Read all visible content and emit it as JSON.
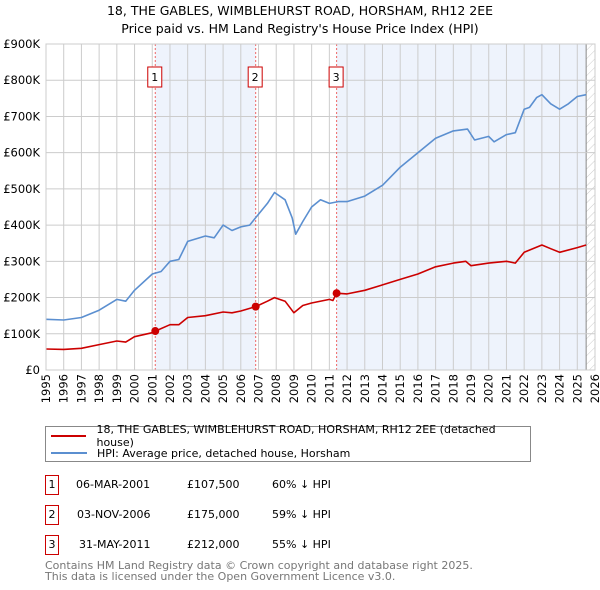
{
  "title": "18, THE GABLES, WIMBLEHURST ROAD, HORSHAM, RH12 2EE",
  "subtitle": "Price paid vs. HM Land Registry's House Price Index (HPI)",
  "colors": {
    "property": "#cc0000",
    "hpi": "#5b8fd0",
    "shade": "#eef3fc",
    "grid": "#cccccc"
  },
  "chart_data": {
    "type": "line",
    "title": "18, THE GABLES, WIMBLEHURST ROAD, HORSHAM, RH12 2EE",
    "xlim": [
      1995,
      2026
    ],
    "ylim": [
      0,
      900000
    ],
    "grid": true,
    "x_ticks": [
      "1995",
      "1996",
      "1997",
      "1998",
      "1999",
      "2000",
      "2001",
      "2002",
      "2003",
      "2004",
      "2005",
      "2006",
      "2007",
      "2008",
      "2009",
      "2010",
      "2011",
      "2012",
      "2013",
      "2014",
      "2015",
      "2016",
      "2017",
      "2018",
      "2019",
      "2020",
      "2021",
      "2022",
      "2023",
      "2024",
      "2025",
      "2026"
    ],
    "y_ticks": [
      {
        "v": 0,
        "label": "£0"
      },
      {
        "v": 100000,
        "label": "£100K"
      },
      {
        "v": 200000,
        "label": "£200K"
      },
      {
        "v": 300000,
        "label": "£300K"
      },
      {
        "v": 400000,
        "label": "£400K"
      },
      {
        "v": 500000,
        "label": "£500K"
      },
      {
        "v": 600000,
        "label": "£600K"
      },
      {
        "v": 700000,
        "label": "£700K"
      },
      {
        "v": 800000,
        "label": "£800K"
      },
      {
        "v": 900000,
        "label": "£900K"
      }
    ],
    "series": [
      {
        "name": "18, THE GABLES, WIMBLEHURST ROAD, HORSHAM, RH12 2EE (detached house)",
        "x": [
          1995,
          1996,
          1997,
          1998,
          1999,
          1999.5,
          2000,
          2001,
          2001.17,
          2002,
          2002.5,
          2003,
          2004,
          2005,
          2005.5,
          2006,
          2006.84,
          2007.5,
          2007.9,
          2008.5,
          2009,
          2009.5,
          2010,
          2011,
          2011.2,
          2011.41,
          2012,
          2013,
          2014,
          2015,
          2016,
          2017,
          2018,
          2018.7,
          2019,
          2020,
          2021,
          2021.5,
          2022,
          2023,
          2023.5,
          2024,
          2025,
          2025.5
        ],
        "y": [
          58000,
          57000,
          60000,
          70000,
          80000,
          77000,
          92000,
          103000,
          107500,
          125000,
          125000,
          145000,
          150000,
          160000,
          158000,
          163000,
          175000,
          190000,
          200000,
          190000,
          158000,
          178000,
          185000,
          195000,
          192000,
          212000,
          210000,
          220000,
          235000,
          250000,
          265000,
          285000,
          295000,
          300000,
          288000,
          295000,
          300000,
          295000,
          325000,
          345000,
          335000,
          325000,
          338000,
          345000
        ]
      },
      {
        "name": "HPI: Average price, detached house, Horsham",
        "x": [
          1995,
          1996,
          1997,
          1998,
          1999,
          1999.5,
          2000,
          2001,
          2001.5,
          2002,
          2002.5,
          2003,
          2004,
          2004.5,
          2005,
          2005.5,
          2006,
          2006.5,
          2007,
          2007.5,
          2007.9,
          2008.5,
          2008.9,
          2009.1,
          2009.5,
          2010,
          2010.5,
          2011,
          2011.5,
          2012,
          2013,
          2014,
          2015,
          2016,
          2017,
          2018,
          2018.8,
          2019.2,
          2020,
          2020.3,
          2021,
          2021.5,
          2022,
          2022.3,
          2022.7,
          2023,
          2023.5,
          2024,
          2024.5,
          2025,
          2025.5
        ],
        "y": [
          140000,
          138000,
          145000,
          165000,
          195000,
          190000,
          220000,
          265000,
          272000,
          300000,
          305000,
          355000,
          370000,
          365000,
          400000,
          385000,
          395000,
          400000,
          430000,
          460000,
          490000,
          470000,
          420000,
          375000,
          410000,
          450000,
          470000,
          460000,
          465000,
          465000,
          480000,
          510000,
          560000,
          600000,
          640000,
          660000,
          665000,
          635000,
          645000,
          630000,
          650000,
          655000,
          720000,
          725000,
          752000,
          760000,
          735000,
          720000,
          735000,
          755000,
          760000
        ]
      }
    ],
    "sales": [
      {
        "id": "1",
        "x": 2001.17,
        "y": 107500
      },
      {
        "id": "2",
        "x": 2006.84,
        "y": 175000
      },
      {
        "id": "3",
        "x": 2011.41,
        "y": 212000
      }
    ],
    "hatch_from": 2025.5
  },
  "legend": {
    "property": "18, THE GABLES, WIMBLEHURST ROAD, HORSHAM, RH12 2EE (detached house)",
    "hpi": "HPI: Average price, detached house, Horsham"
  },
  "transactions": [
    {
      "id": "1",
      "date": "06-MAR-2001",
      "price": "£107,500",
      "hpi": "60% ↓ HPI"
    },
    {
      "id": "2",
      "date": "03-NOV-2006",
      "price": "£175,000",
      "hpi": "59% ↓ HPI"
    },
    {
      "id": "3",
      "date": "31-MAY-2011",
      "price": "£212,000",
      "hpi": "55% ↓ HPI"
    }
  ],
  "footer": {
    "line1": "Contains HM Land Registry data © Crown copyright and database right 2025.",
    "line2": "This data is licensed under the Open Government Licence v3.0."
  }
}
